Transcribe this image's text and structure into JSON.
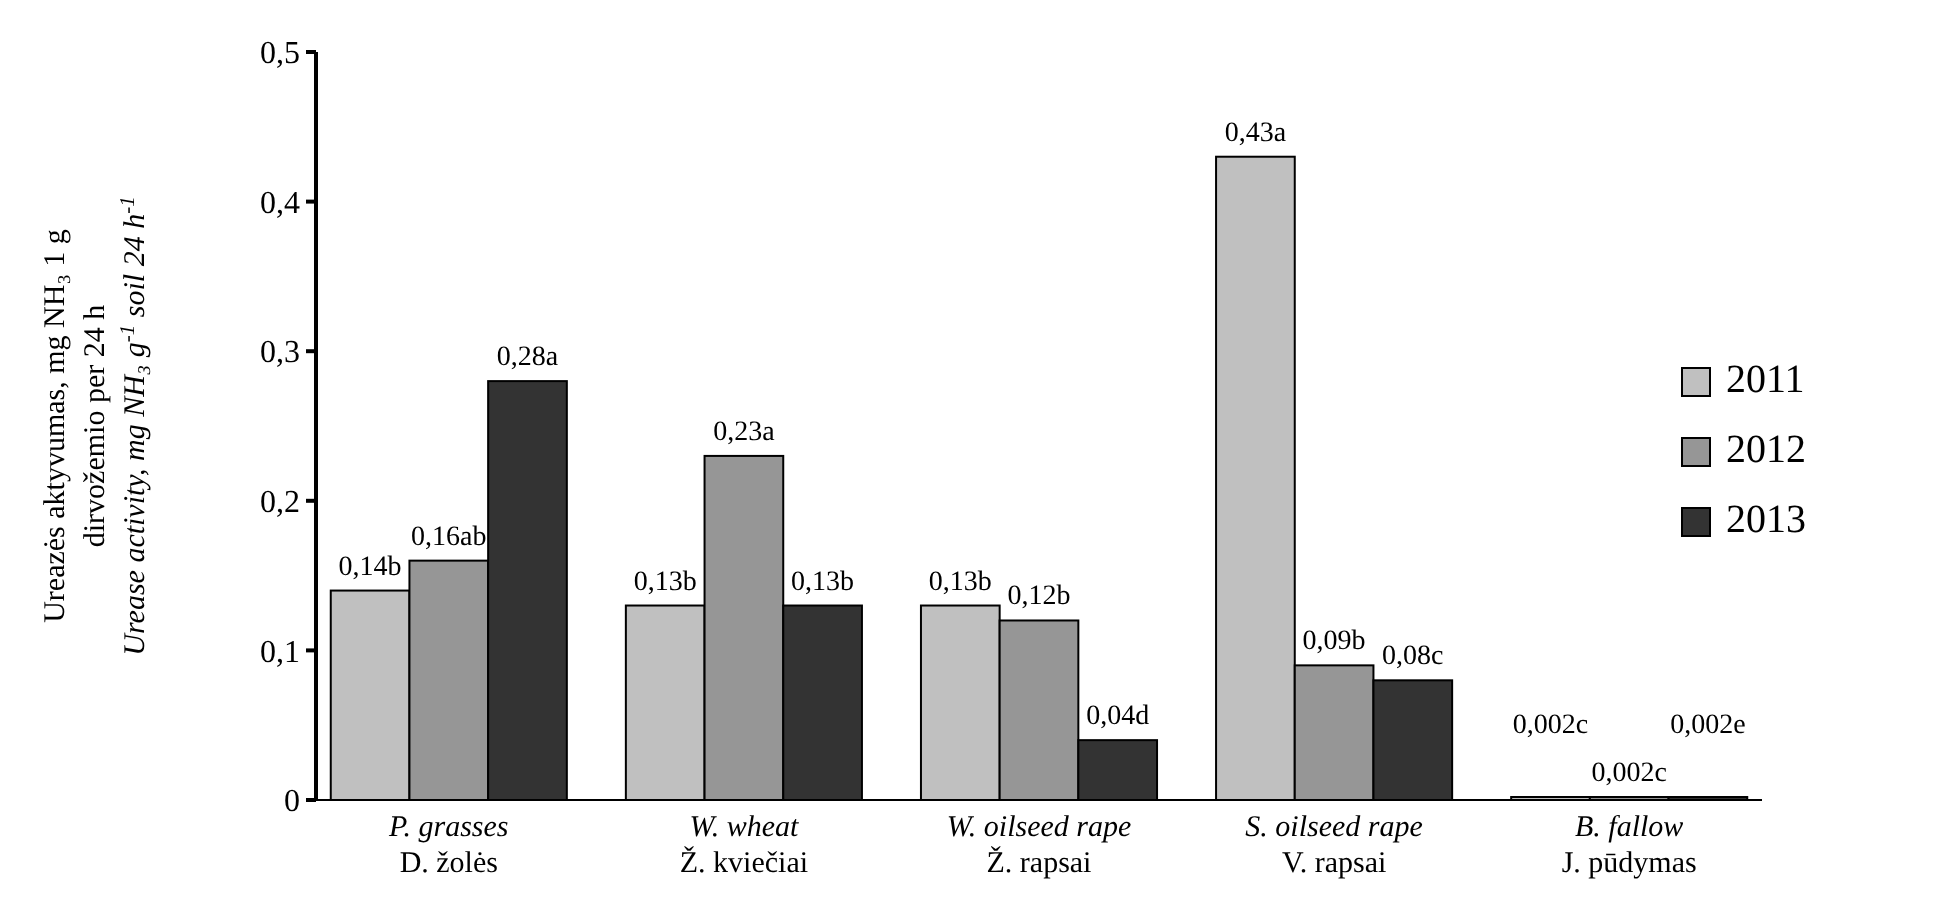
{
  "chart_data": {
    "type": "bar",
    "ylabel": "Ureazės aktyvumas, mg NH₃ 1 g\ndirvožemio per 24 h\nUrease activity, mg NH₃ g$^{-1}$ soil 24 h$^{-1}$",
    "categories": [
      "P. grasses\nD. žolės",
      "W. wheat\nŽ. kviečiai",
      "W. oilseed rape\nŽ. rapsai",
      "S. oilseed rape\nV. rapsai",
      "B. fallow\nJ. pūdymas"
    ],
    "series": [
      {
        "name": "2011",
        "color": "#c0c0c0",
        "values": [
          0.14,
          0.13,
          0.13,
          0.43,
          0.002
        ],
        "value_labels": [
          "0,14b",
          "0,13b",
          "0,13b",
          "0,43a",
          "0,002c"
        ]
      },
      {
        "name": "2012",
        "color": "#969696",
        "values": [
          0.16,
          0.23,
          0.12,
          0.09,
          0.002
        ],
        "value_labels": [
          "0,16ab",
          "0,23a",
          "0,12b",
          "0,09b",
          "0,002c"
        ]
      },
      {
        "name": "2013",
        "color": "#333333",
        "values": [
          0.28,
          0.13,
          0.04,
          0.08,
          0.002
        ],
        "value_labels": [
          "0,28a",
          "0,13b",
          "0,04d",
          "0,08c",
          "0,002e"
        ]
      }
    ],
    "ylim": [
      0,
      0.5
    ],
    "yticks": [
      {
        "value": 0,
        "label": "0"
      },
      {
        "value": 0.1,
        "label": "0,1"
      },
      {
        "value": 0.2,
        "label": "0,2"
      },
      {
        "value": 0.3,
        "label": "0,3"
      },
      {
        "value": 0.4,
        "label": "0,4"
      },
      {
        "value": 0.5,
        "label": "0,5"
      }
    ],
    "legend": "right",
    "grid": false
  }
}
